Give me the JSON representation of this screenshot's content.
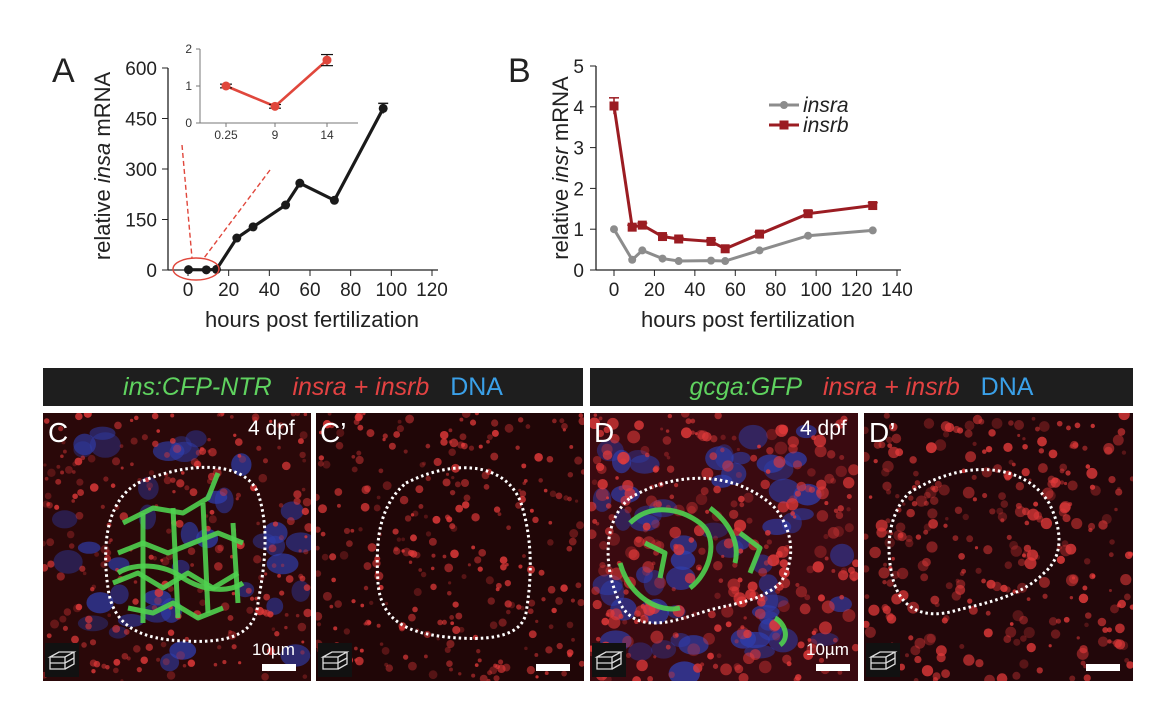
{
  "panels": {
    "a": "A",
    "b": "B",
    "c": "C",
    "c_prime": "C’",
    "d": "D",
    "d_prime": "D’"
  },
  "chart_data": [
    {
      "type": "line",
      "panel": "A",
      "ylabel_pre": "relative ",
      "ylabel_italic": "insa",
      "ylabel_post": " mRNA",
      "xlabel": "hours post fertilization",
      "xlim": [
        0,
        120
      ],
      "ylim": [
        0,
        600
      ],
      "xticks": [
        "0",
        "20",
        "40",
        "60",
        "80",
        "100",
        "120"
      ],
      "yticks": [
        "0",
        "150",
        "300",
        "450",
        "600"
      ],
      "series": [
        {
          "x": [
            0.25,
            9,
            14,
            24,
            32,
            48,
            55,
            72,
            96
          ],
          "y": [
            1,
            0.5,
            1.7,
            95,
            128,
            193,
            258,
            207,
            480
          ],
          "err": [
            0,
            0,
            0,
            0,
            0,
            0,
            0,
            0,
            15
          ],
          "color": "#1a1a1a"
        }
      ],
      "inset": {
        "type": "line",
        "categories": [
          "0.25",
          "9",
          "14"
        ],
        "y": [
          1.0,
          0.45,
          1.7
        ],
        "err": [
          0.05,
          0.05,
          0.15
        ],
        "ylim": [
          0,
          2
        ],
        "yticks": [
          "0",
          "1",
          "2"
        ],
        "color": "#e0473c"
      }
    },
    {
      "type": "line",
      "panel": "B",
      "ylabel_pre": "relative ",
      "ylabel_italic": "insr",
      "ylabel_post": " mRNA",
      "xlabel": "hours post fertilization",
      "xlim": [
        0,
        140
      ],
      "ylim": [
        0,
        5
      ],
      "xticks": [
        "0",
        "20",
        "40",
        "60",
        "80",
        "100",
        "120",
        "140"
      ],
      "yticks": [
        "0",
        "1",
        "2",
        "3",
        "4",
        "5"
      ],
      "legend_position": "top-right",
      "series": [
        {
          "name": "insra",
          "color": "#8c8c8c",
          "x": [
            0,
            9,
            14,
            24,
            32,
            48,
            55,
            72,
            96,
            128
          ],
          "y": [
            1.0,
            0.25,
            0.48,
            0.28,
            0.22,
            0.23,
            0.22,
            0.48,
            0.84,
            0.97
          ],
          "err": [
            0,
            0,
            0,
            0,
            0,
            0,
            0,
            0,
            0,
            0
          ]
        },
        {
          "name": "insrb",
          "color": "#9b1c22",
          "x": [
            0,
            9,
            14,
            24,
            32,
            48,
            55,
            72,
            96,
            128
          ],
          "y": [
            4.02,
            1.05,
            1.1,
            0.82,
            0.76,
            0.7,
            0.52,
            0.88,
            1.38,
            1.58
          ],
          "err": [
            0.2,
            0.05,
            0.05,
            0.04,
            0.04,
            0.04,
            0.04,
            0.05,
            0.07,
            0.07
          ]
        }
      ]
    }
  ],
  "headers": {
    "left": {
      "green": "ins:CFP-NTR",
      "red": "insra + insrb",
      "blue": "DNA"
    },
    "right": {
      "green": "gcga:GFP",
      "red": "insra + insrb",
      "blue": "DNA"
    }
  },
  "images": {
    "age_label": "4 dpf",
    "scale_label": "10µm"
  },
  "colors": {
    "red_stain": "#e23a3a",
    "green_stain": "#4fd04f",
    "blue_stain": "#2f3fb0"
  }
}
